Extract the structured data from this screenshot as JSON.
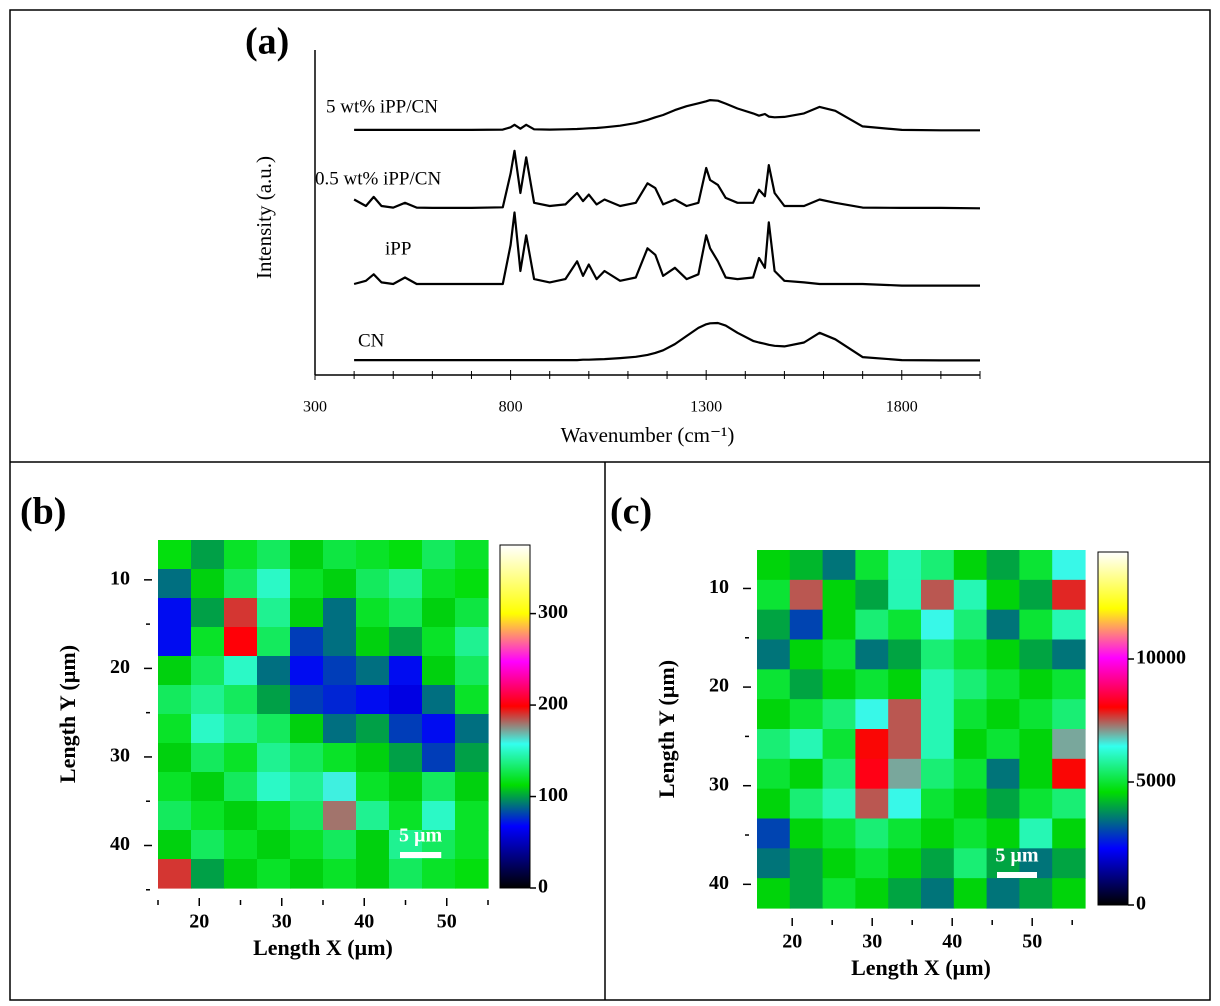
{
  "chart_data": [
    {
      "type": "line",
      "panel_label": "(a)",
      "xlabel": "Wavenumber (cm⁻¹)",
      "ylabel": "Intensity (a.u.)",
      "xlim": [
        300,
        2000
      ],
      "ylim": [
        0,
        100
      ],
      "xticks": [
        300,
        800,
        1300,
        1800
      ],
      "xminorticks": [
        400,
        500,
        600,
        700,
        900,
        1000,
        1100,
        1200,
        1400,
        1500,
        1600,
        1700,
        1900,
        2000
      ],
      "x": [
        400,
        430,
        450,
        470,
        500,
        530,
        560,
        600,
        700,
        780,
        800,
        810,
        825,
        840,
        860,
        900,
        940,
        970,
        985,
        1000,
        1020,
        1040,
        1080,
        1120,
        1150,
        1170,
        1190,
        1220,
        1250,
        1280,
        1300,
        1310,
        1330,
        1350,
        1380,
        1420,
        1435,
        1450,
        1460,
        1475,
        1500,
        1550,
        1590,
        1630,
        1700,
        1800,
        1900,
        2000
      ],
      "series": [
        {
          "name": "5 wt% iPP/CN",
          "color": "#000000",
          "values": [
            75.4,
            75.4,
            75.4,
            75.4,
            75.4,
            75.4,
            75.4,
            75.4,
            75.4,
            75.5,
            76.2,
            77,
            75.8,
            77,
            75.6,
            75.5,
            75.6,
            75.7,
            75.8,
            75.9,
            76,
            76.2,
            76.7,
            77.5,
            78.5,
            79.3,
            80,
            81.5,
            82.7,
            83.6,
            84.2,
            84.6,
            84.4,
            83.5,
            82,
            80.5,
            79.8,
            80.3,
            79.5,
            79.3,
            79.4,
            80.5,
            82.5,
            81.3,
            76.5,
            75.4,
            75.3,
            75.3
          ]
        },
        {
          "name": "0.5 wt% iPP/CN",
          "color": "#000000",
          "values": [
            54,
            52,
            54.8,
            52,
            51.5,
            53,
            51.5,
            51.4,
            51.4,
            51.6,
            62,
            69,
            56,
            67,
            53,
            52,
            52.5,
            56,
            53.5,
            55.5,
            52.5,
            54,
            52,
            53,
            59,
            57.5,
            52.5,
            54,
            52,
            53,
            63.7,
            60,
            58.5,
            54.5,
            53,
            53,
            57,
            55,
            64.6,
            56,
            52,
            52,
            54,
            53,
            51.5,
            51.4,
            51.4,
            51.3
          ]
        },
        {
          "name": "iPP",
          "color": "#000000",
          "values": [
            28,
            29,
            31,
            28.5,
            28,
            30,
            28,
            28,
            28,
            28,
            40,
            50,
            32,
            43,
            29.5,
            28.5,
            29.5,
            35,
            30.5,
            34,
            29.5,
            32,
            29,
            30,
            39,
            37,
            30.5,
            33,
            29.5,
            31,
            43,
            39,
            35,
            30,
            29.5,
            30,
            36,
            33,
            47,
            32,
            29,
            28.5,
            28,
            28,
            28,
            27.5,
            27.5,
            27.5
          ]
        },
        {
          "name": "CN",
          "color": "#000000",
          "values": [
            4.6,
            4.6,
            4.6,
            4.6,
            4.6,
            4.6,
            4.6,
            4.6,
            4.6,
            4.6,
            4.6,
            4.6,
            4.6,
            4.6,
            4.6,
            4.6,
            4.6,
            4.6,
            4.7,
            4.7,
            4.8,
            4.9,
            5.2,
            5.6,
            6.2,
            6.8,
            7.6,
            9.5,
            12,
            14.5,
            15.6,
            15.9,
            16,
            15.2,
            13,
            10.5,
            10,
            9.6,
            9.3,
            9,
            8.8,
            10,
            13,
            11,
            5.5,
            4.6,
            4.5,
            4.5
          ]
        }
      ]
    },
    {
      "type": "heatmap",
      "panel_label": "(b)",
      "xlabel": "Length X (µm)",
      "ylabel": "Length Y (µm)",
      "xlim": [
        15,
        55
      ],
      "ylim": [
        5.5,
        44.8
      ],
      "xticks": [
        20,
        30,
        40,
        50
      ],
      "yticks": [
        10,
        20,
        30,
        40
      ],
      "xminorticks": [
        15,
        25,
        35,
        45,
        55
      ],
      "yminorticks": [
        15,
        25,
        35,
        45
      ],
      "clim": [
        0,
        375
      ],
      "cticks": [
        0,
        100,
        200,
        300
      ],
      "colormap": [
        {
          "pos": 0,
          "color": "#000000"
        },
        {
          "pos": 0.18,
          "color": "#0000ff"
        },
        {
          "pos": 0.3,
          "color": "#00dd00"
        },
        {
          "pos": 0.42,
          "color": "#33ffee"
        },
        {
          "pos": 0.53,
          "color": "#ff0000"
        },
        {
          "pos": 0.66,
          "color": "#ff00ff"
        },
        {
          "pos": 0.8,
          "color": "#ffff00"
        },
        {
          "pos": 1,
          "color": "#ffffff"
        }
      ],
      "scale_bar": {
        "label": "5 µm",
        "length": 5
      },
      "z": [
        [
          115,
          100,
          120,
          130,
          110,
          125,
          120,
          115,
          130,
          120
        ],
        [
          90,
          110,
          130,
          150,
          120,
          110,
          130,
          140,
          120,
          115
        ],
        [
          70,
          100,
          190,
          140,
          110,
          90,
          120,
          130,
          110,
          125
        ],
        [
          70,
          120,
          200,
          130,
          80,
          90,
          110,
          100,
          120,
          140
        ],
        [
          110,
          130,
          150,
          90,
          70,
          80,
          90,
          70,
          110,
          130
        ],
        [
          130,
          140,
          130,
          100,
          80,
          75,
          70,
          60,
          90,
          120
        ],
        [
          120,
          150,
          140,
          130,
          110,
          90,
          100,
          80,
          70,
          90
        ],
        [
          110,
          130,
          120,
          140,
          130,
          120,
          110,
          100,
          80,
          100
        ],
        [
          120,
          110,
          130,
          150,
          140,
          160,
          120,
          110,
          130,
          110
        ],
        [
          130,
          120,
          110,
          120,
          130,
          180,
          140,
          120,
          150,
          120
        ],
        [
          110,
          130,
          120,
          110,
          120,
          130,
          110,
          140,
          130,
          120
        ],
        [
          190,
          100,
          110,
          120,
          110,
          120,
          110,
          130,
          120,
          115
        ]
      ]
    },
    {
      "type": "heatmap",
      "panel_label": "(c)",
      "xlabel": "Length X (µm)",
      "ylabel": "Length Y (µm)",
      "xlim": [
        15.6,
        56.6
      ],
      "ylim": [
        6.1,
        42.4
      ],
      "xticks": [
        20,
        30,
        40,
        50
      ],
      "yticks": [
        10,
        20,
        30,
        40
      ],
      "xminorticks": [
        25,
        35,
        45,
        55
      ],
      "yminorticks": [
        15,
        25,
        35
      ],
      "clim": [
        0,
        14350
      ],
      "cticks": [
        0,
        5000,
        10000
      ],
      "colormap": [
        {
          "pos": 0,
          "color": "#000000"
        },
        {
          "pos": 0.16,
          "color": "#0000ff"
        },
        {
          "pos": 0.32,
          "color": "#00dd00"
        },
        {
          "pos": 0.45,
          "color": "#33ffee"
        },
        {
          "pos": 0.56,
          "color": "#ff0000"
        },
        {
          "pos": 0.7,
          "color": "#ff00ff"
        },
        {
          "pos": 0.84,
          "color": "#ffff00"
        },
        {
          "pos": 1,
          "color": "#ffffff"
        }
      ],
      "scale_bar": {
        "label": "5 µm",
        "length": 5
      },
      "z": [
        [
          4500,
          4200,
          3500,
          5000,
          6000,
          5500,
          4500,
          4000,
          5000,
          6500
        ],
        [
          5000,
          7500,
          4500,
          4000,
          6000,
          7500,
          6000,
          4500,
          4000,
          7800
        ],
        [
          4000,
          3000,
          4500,
          5500,
          5000,
          6500,
          5500,
          3500,
          5000,
          6000
        ],
        [
          3500,
          4500,
          5000,
          3500,
          4000,
          5500,
          5000,
          4500,
          4000,
          3500
        ],
        [
          5000,
          4000,
          4500,
          5000,
          4500,
          6000,
          5500,
          5000,
          4500,
          5000
        ],
        [
          4500,
          5000,
          5500,
          6500,
          7500,
          6000,
          5000,
          4500,
          5000,
          5500
        ],
        [
          5500,
          6000,
          5000,
          8000,
          7500,
          6000,
          4500,
          5000,
          4500,
          7000
        ],
        [
          5000,
          4500,
          5500,
          8200,
          7000,
          5500,
          5000,
          3500,
          4500,
          8000
        ],
        [
          4500,
          5500,
          6000,
          7500,
          6500,
          5000,
          4500,
          4000,
          5000,
          5500
        ],
        [
          3000,
          4500,
          5000,
          5500,
          5000,
          4500,
          5000,
          4500,
          6000,
          4500
        ],
        [
          3500,
          4000,
          4500,
          5000,
          4500,
          4000,
          5500,
          4000,
          3500,
          4000
        ],
        [
          4500,
          4000,
          5000,
          4500,
          4000,
          3500,
          4500,
          3500,
          4000,
          4500
        ]
      ]
    }
  ]
}
